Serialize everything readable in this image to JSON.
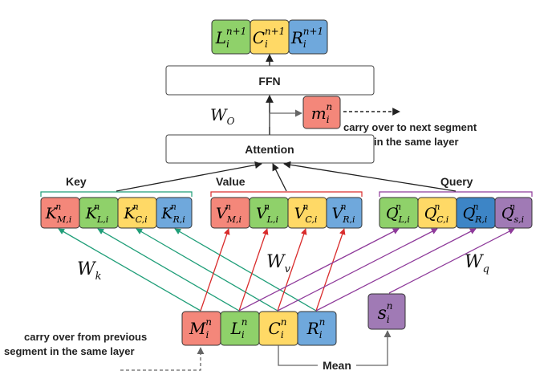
{
  "top_outputs": [
    {
      "base": "L",
      "sub": "i",
      "sup": "n+1",
      "fill": "#8fd16a"
    },
    {
      "base": "C",
      "sub": "i",
      "sup": "n+1",
      "fill": "#ffd966"
    },
    {
      "base": "R",
      "sub": "i",
      "sup": "n+1",
      "fill": "#6fa8dc"
    }
  ],
  "ffn_label": "FFN",
  "attention_label": "Attention",
  "w_o": {
    "base": "W",
    "sub": "O"
  },
  "memory_out": {
    "base": "m",
    "sub": "i",
    "sup": "n",
    "fill": "#f4877a"
  },
  "carry_over_next": [
    "carry over to next segment",
    "in the same layer"
  ],
  "group_labels": {
    "key": "Key",
    "value": "Value",
    "query": "Query"
  },
  "keys": [
    {
      "base": "K",
      "sub": "M,i",
      "sup": "n",
      "fill": "#f4877a"
    },
    {
      "base": "K",
      "sub": "L,i",
      "sup": "n",
      "fill": "#8fd16a"
    },
    {
      "base": "K",
      "sub": "C,i",
      "sup": "n",
      "fill": "#ffd966"
    },
    {
      "base": "K",
      "sub": "R,i",
      "sup": "n",
      "fill": "#6fa8dc"
    }
  ],
  "values": [
    {
      "base": "V",
      "sub": "M,i",
      "sup": "n",
      "fill": "#f4877a"
    },
    {
      "base": "V",
      "sub": "L,i",
      "sup": "n",
      "fill": "#8fd16a"
    },
    {
      "base": "V",
      "sub": "C,i",
      "sup": "n",
      "fill": "#ffd966"
    },
    {
      "base": "V",
      "sub": "R,i",
      "sup": "n",
      "fill": "#6fa8dc"
    }
  ],
  "queries": [
    {
      "base": "Q",
      "sub": "L,i",
      "sup": "n",
      "fill": "#8fd16a"
    },
    {
      "base": "Q",
      "sub": "C,i",
      "sup": "n",
      "fill": "#ffd966"
    },
    {
      "base": "Q",
      "sub": "R,i",
      "sup": "n",
      "fill": "#3d85c6"
    },
    {
      "base": "Q",
      "sub": "s,i",
      "sup": "n",
      "fill": "#a07ab5"
    }
  ],
  "weights": {
    "w_k": {
      "base": "W",
      "sub": "k"
    },
    "w_v": {
      "base": "W",
      "sub": "v"
    },
    "w_q": {
      "base": "W",
      "sub": "q"
    }
  },
  "inputs": [
    {
      "base": "M",
      "sub": "i",
      "sup": "n",
      "fill": "#f4877a"
    },
    {
      "base": "L",
      "sub": "i",
      "sup": "n",
      "fill": "#8fd16a"
    },
    {
      "base": "C",
      "sub": "i",
      "sup": "n",
      "fill": "#ffd966"
    },
    {
      "base": "R",
      "sub": "i",
      "sup": "n",
      "fill": "#6fa8dc"
    }
  ],
  "summary": {
    "base": "s",
    "sub": "i",
    "sup": "n",
    "fill": "#a07ab5"
  },
  "mean_label": "Mean",
  "carry_over_prev": [
    "carry over from previous",
    "segment in the same layer"
  ],
  "colors": {
    "key_arrow": "#1f9e78",
    "value_arrow": "#d92c2c",
    "query_arrow": "#8e3a9a",
    "black": "#222222",
    "gray": "#666666"
  }
}
